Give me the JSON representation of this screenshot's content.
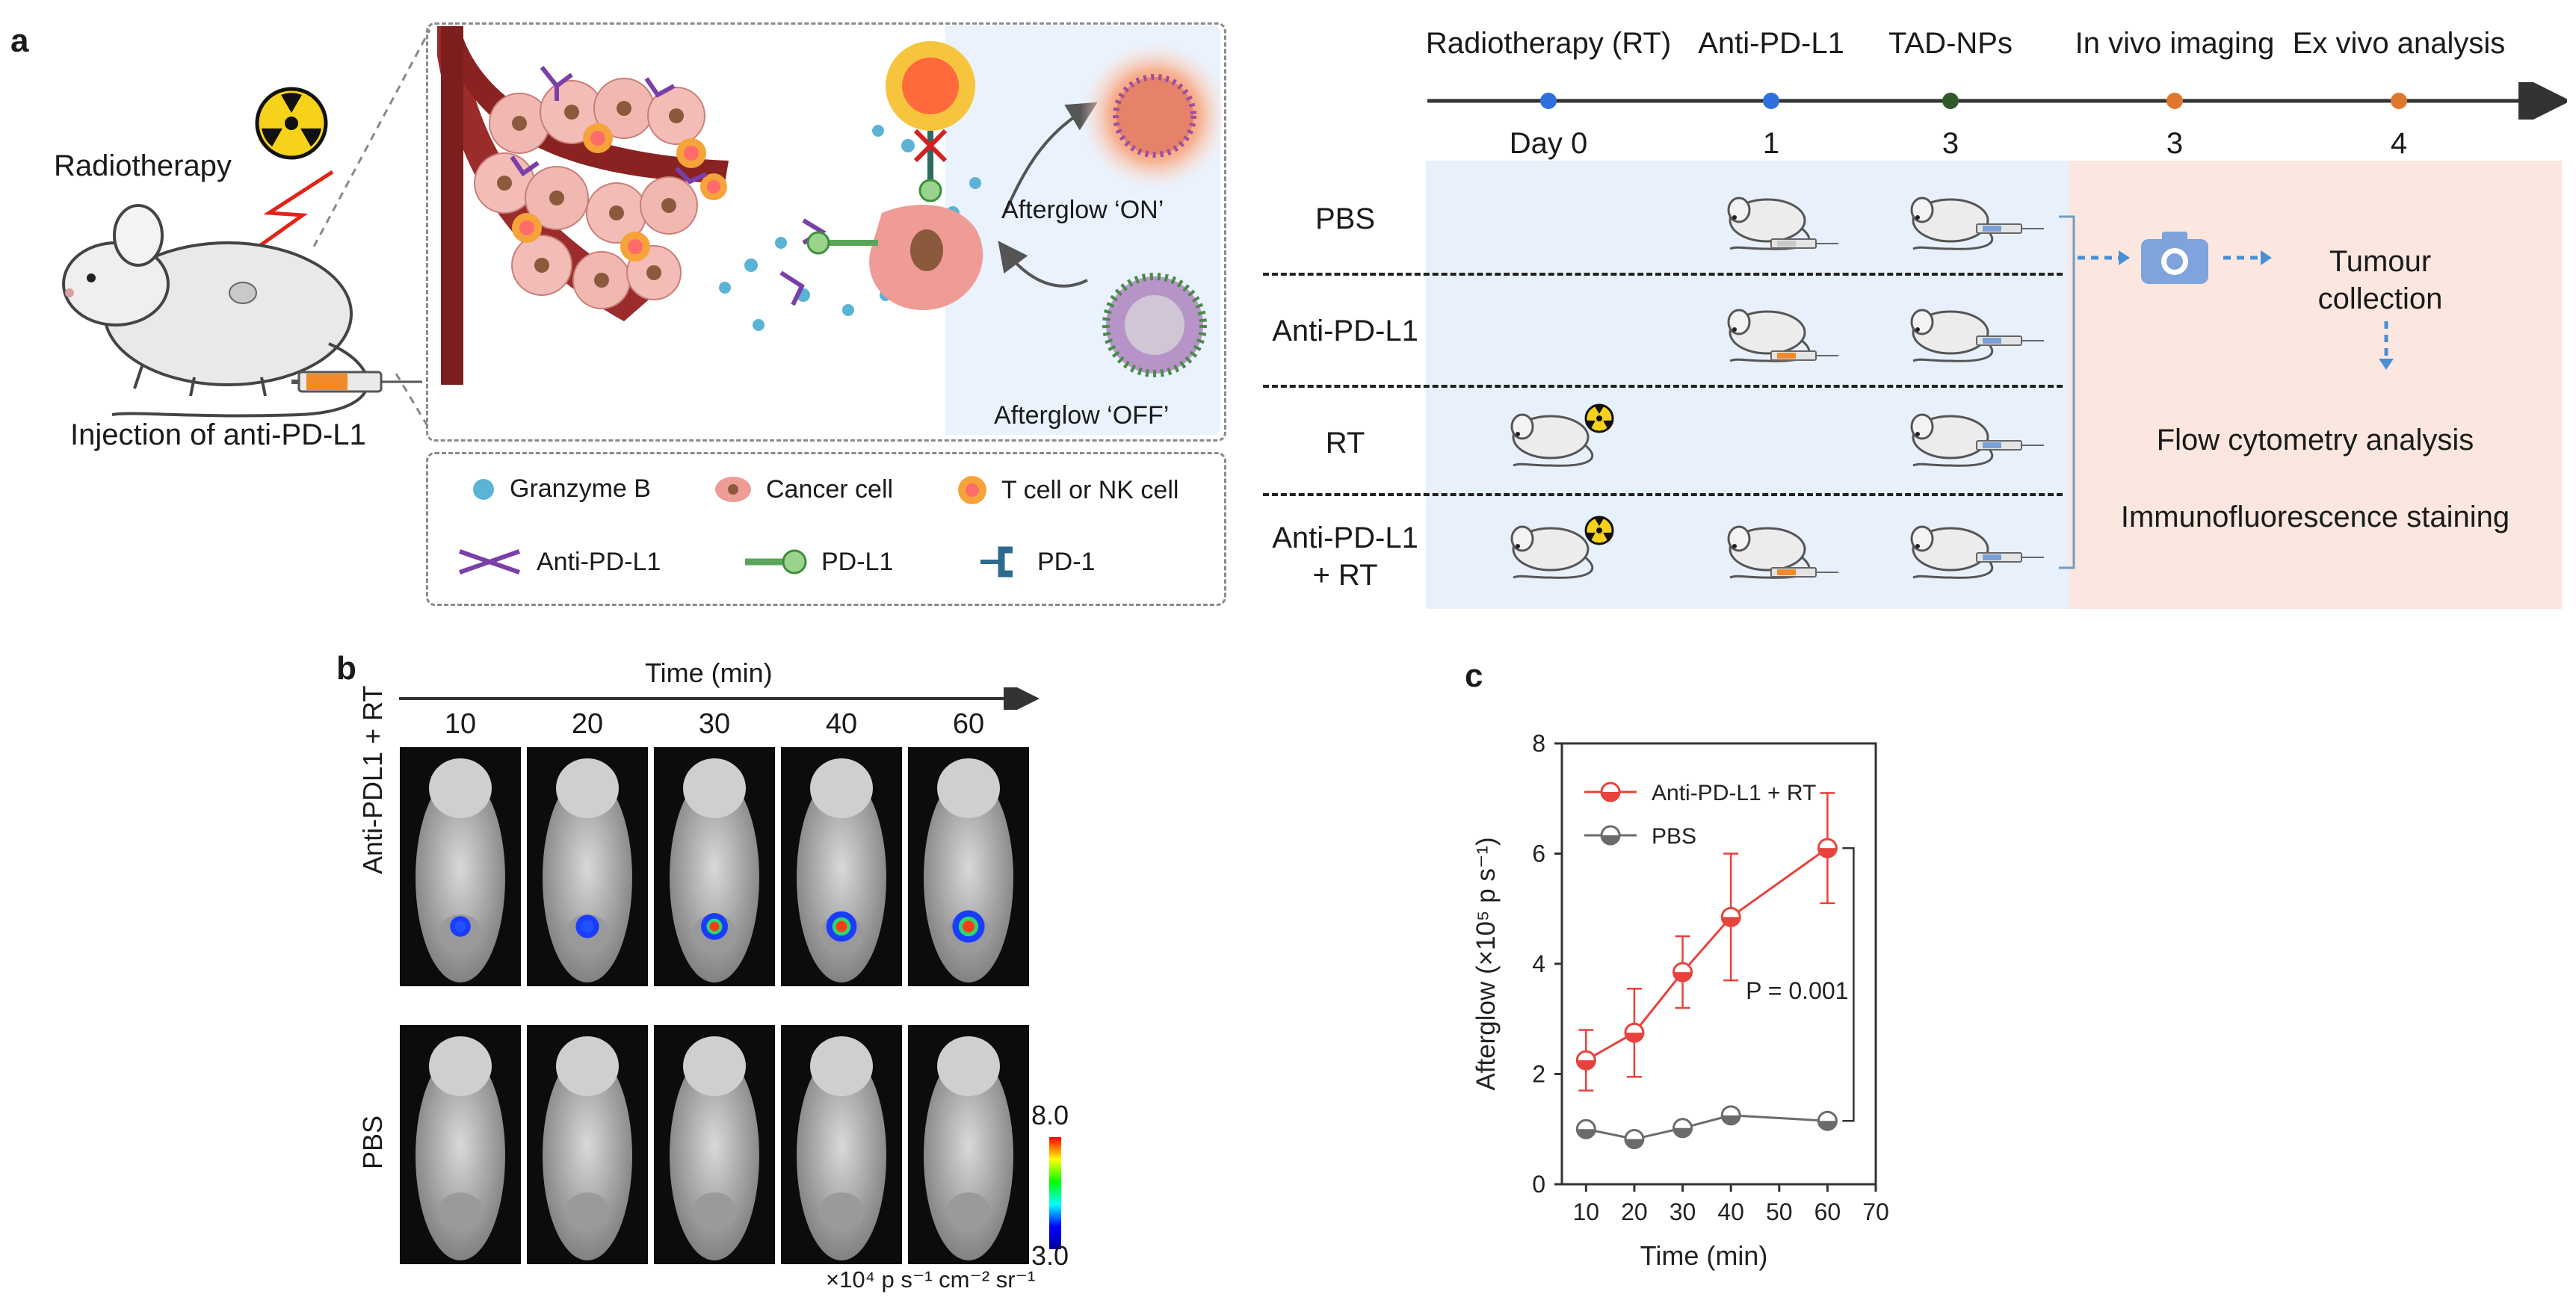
{
  "panels": {
    "a": "a",
    "b": "b",
    "c": "c"
  },
  "schematic": {
    "radiotherapy": "Radiotherapy",
    "injection": "Injection of anti-PD-L1",
    "afterglow_on": "Afterglow ‘ON’",
    "afterglow_off": "Afterglow ‘OFF’",
    "legend": {
      "granzyme": "Granzyme B",
      "cancer_cell": "Cancer cell",
      "t_cell": "T cell or NK cell",
      "anti_pdl1": "Anti-PD-L1",
      "pdl1": "PD-L1",
      "pd1": "PD-1"
    }
  },
  "timeline": {
    "events": [
      {
        "label": "Radiotherapy (RT)",
        "day": "Day 0",
        "color": "#2f6fe0"
      },
      {
        "label": "Anti-PD-L1",
        "day": "1",
        "color": "#2f6fe0"
      },
      {
        "label": "TAD-NPs",
        "day": "3",
        "color": "#2e5a2a"
      },
      {
        "label": "In vivo imaging",
        "day": "3",
        "color": "#e0772f"
      },
      {
        "label": "Ex vivo analysis",
        "day": "4",
        "color": "#e0772f"
      }
    ],
    "groups": [
      "PBS",
      "Anti-PD-L1",
      "RT",
      "Anti-PD-L1\n+ RT"
    ],
    "analysis": {
      "tumour": "Tumour\ncollection",
      "flow": "Flow cytometry analysis",
      "immuno": "Immunofluorescence staining"
    }
  },
  "imaging": {
    "time_label": "Time (min)",
    "times": [
      "10",
      "20",
      "30",
      "40",
      "60"
    ],
    "row_labels": [
      "Anti-PDL1 + RT",
      "PBS"
    ],
    "scale_max": "8.0",
    "scale_min": "3.0",
    "scale_unit": "×10⁴ p s⁻¹ cm⁻² sr⁻¹",
    "signal_levels": [
      0.15,
      0.3,
      0.5,
      0.7,
      0.8
    ]
  },
  "chart_data": {
    "type": "line",
    "xlabel": "Time (min)",
    "ylabel": "Afterglow (×10⁵ p s⁻¹)",
    "xlim": [
      5,
      70
    ],
    "ylim": [
      0,
      8
    ],
    "xticks": [
      10,
      20,
      30,
      40,
      50,
      60,
      70
    ],
    "yticks": [
      0,
      2,
      4,
      6,
      8
    ],
    "annotation": "P = 0.001",
    "series": [
      {
        "name": "Anti-PD-L1 + RT",
        "color": "#e8423c",
        "x": [
          10,
          20,
          30,
          40,
          60
        ],
        "y": [
          2.25,
          2.75,
          3.85,
          4.85,
          6.1
        ],
        "err": [
          0.55,
          0.8,
          0.65,
          1.15,
          1.0
        ]
      },
      {
        "name": "PBS",
        "color": "#6b6b6b",
        "x": [
          10,
          20,
          30,
          40,
          60
        ],
        "y": [
          1.0,
          0.82,
          1.02,
          1.25,
          1.15
        ],
        "err": [
          0.08,
          0.1,
          0.08,
          0.06,
          0.06
        ]
      }
    ]
  }
}
